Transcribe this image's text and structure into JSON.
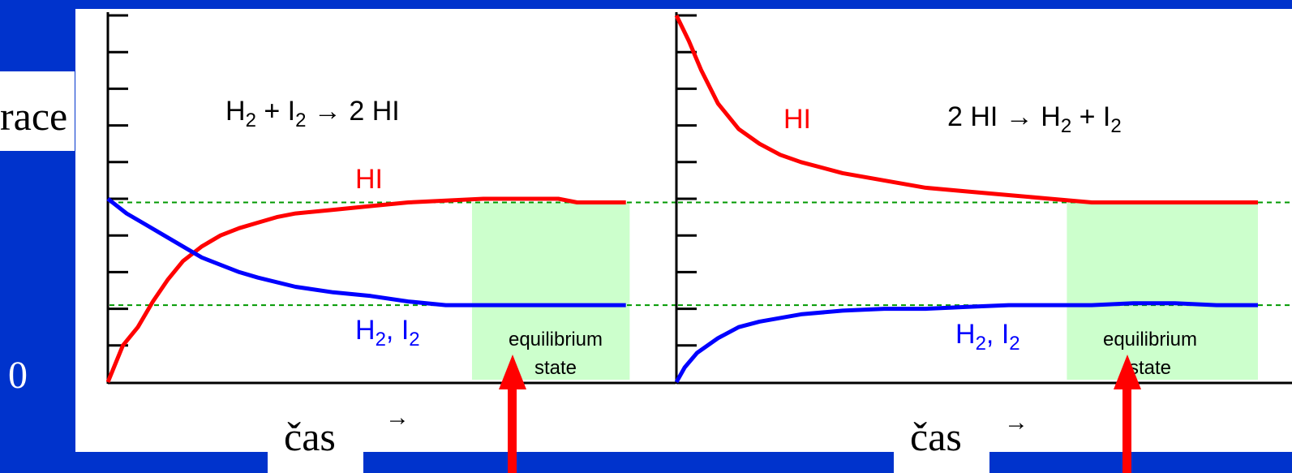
{
  "left_labels": {
    "y_axis_label_fragment": "race",
    "y_axis_zero": "0"
  },
  "colors": {
    "background": "#0033cc",
    "panel": "#ffffff",
    "hi_curve": "#ff0000",
    "h2i2_curve": "#0000ff",
    "equilibrium_box": "#ccffcc",
    "guide_line": "#009900",
    "arrow": "#ff0000"
  },
  "chart_data": [
    {
      "type": "line",
      "annotation": "H2 + I2 → 2 HI",
      "annotation_parts": {
        "a": "H",
        "a_sub": "2",
        "b": " + I",
        "b_sub": "2",
        "c": " → 2 HI"
      },
      "xlabel": "čas",
      "xlabel_arrow": "→",
      "ylim": [
        0,
        10
      ],
      "xlim": [
        0,
        14
      ],
      "equilibrium_levels": [
        4.9,
        2.1
      ],
      "equilibrium_box": {
        "x0": 9.7,
        "x1": 13.9,
        "label_line1": "equilibrium",
        "label_line2": "state"
      },
      "series": [
        {
          "name": "HI",
          "label_parts": {
            "text": "HI"
          },
          "color": "#ff0000",
          "x": [
            0,
            0.4,
            0.8,
            1.2,
            1.6,
            2.0,
            2.5,
            3.0,
            3.5,
            4.0,
            4.5,
            5.0,
            6.0,
            7.0,
            8.0,
            9.0,
            10.0,
            11.0,
            12.0,
            12.5,
            13.8
          ],
          "y": [
            0,
            1.0,
            1.5,
            2.2,
            2.8,
            3.3,
            3.7,
            4.0,
            4.2,
            4.35,
            4.5,
            4.6,
            4.7,
            4.8,
            4.9,
            4.95,
            5.0,
            5.0,
            5.0,
            4.9,
            4.9
          ]
        },
        {
          "name": "H2, I2",
          "label_parts": {
            "a": "H",
            "a_sub": "2",
            "b": ", I",
            "b_sub": "2"
          },
          "color": "#0000ff",
          "x": [
            0,
            0.5,
            1.0,
            1.5,
            2.0,
            2.5,
            3.0,
            3.5,
            4.0,
            5.0,
            6.0,
            7.0,
            8.0,
            9.0,
            10.0,
            11.0,
            12.0,
            13.0,
            13.8
          ],
          "y": [
            5.0,
            4.6,
            4.3,
            4.0,
            3.7,
            3.4,
            3.2,
            3.0,
            2.85,
            2.6,
            2.45,
            2.35,
            2.2,
            2.1,
            2.1,
            2.1,
            2.1,
            2.1,
            2.1
          ]
        }
      ]
    },
    {
      "type": "line",
      "annotation": "2 HI → H2 + I2",
      "annotation_parts": {
        "a": "2 HI → H",
        "a_sub": "2",
        "b": " + I",
        "b_sub": "2"
      },
      "xlabel": "čas",
      "xlabel_arrow": "→",
      "ylim": [
        0,
        10
      ],
      "xlim": [
        0,
        14
      ],
      "equilibrium_levels": [
        4.9,
        2.1
      ],
      "equilibrium_box": {
        "x0": 9.4,
        "x1": 14.0,
        "label_line1": "equilibrium",
        "label_line2": "state"
      },
      "series": [
        {
          "name": "HI",
          "label_parts": {
            "text": "HI"
          },
          "color": "#ff0000",
          "x": [
            0,
            0.3,
            0.6,
            1.0,
            1.5,
            2.0,
            2.5,
            3.0,
            4.0,
            5.0,
            6.0,
            7.0,
            8.0,
            9.0,
            10.0,
            11.0,
            12.0,
            13.0,
            14.0
          ],
          "y": [
            10.0,
            9.3,
            8.5,
            7.6,
            6.9,
            6.5,
            6.2,
            6.0,
            5.7,
            5.5,
            5.3,
            5.2,
            5.1,
            5.0,
            4.9,
            4.9,
            4.9,
            4.9,
            4.9
          ]
        },
        {
          "name": "H2, I2",
          "label_parts": {
            "a": "H",
            "a_sub": "2",
            "b": ", I",
            "b_sub": "2"
          },
          "color": "#0000ff",
          "x": [
            0,
            0.2,
            0.5,
            1.0,
            1.5,
            2.0,
            3.0,
            4.0,
            5.0,
            6.0,
            7.0,
            8.0,
            9.0,
            10.0,
            11.0,
            12.0,
            13.0,
            14.0
          ],
          "y": [
            0,
            0.4,
            0.8,
            1.2,
            1.5,
            1.65,
            1.85,
            1.95,
            2.0,
            2.0,
            2.05,
            2.1,
            2.1,
            2.1,
            2.15,
            2.15,
            2.1,
            2.1
          ]
        }
      ]
    }
  ]
}
